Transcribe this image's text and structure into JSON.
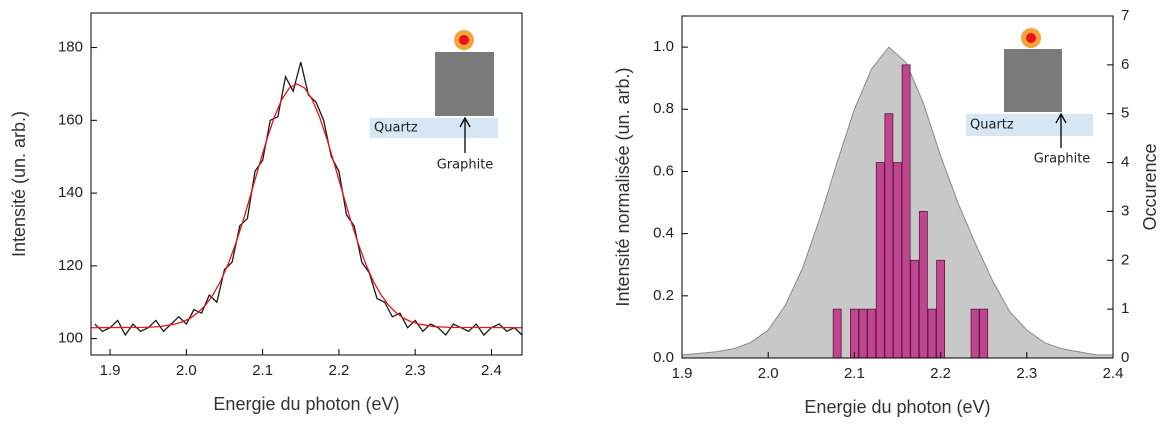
{
  "chart_data": [
    {
      "type": "line",
      "x_label": "Energie du photon (eV)",
      "y_label": "Intensité (un. arb.)",
      "xlim": [
        1.875,
        2.44
      ],
      "xticks": [
        1.9,
        {
          "value": 2,
          "label": "2.0"
        },
        2.1,
        2.2,
        2.3,
        2.4
      ],
      "ylim": [
        95.5,
        189.5
      ],
      "yticks": [
        100,
        120,
        140,
        160,
        180
      ],
      "annotations": [
        "Quartz",
        "Graphite"
      ],
      "series": [
        {
          "type": "line",
          "color": "#1a1a1a",
          "x": [
            1.88,
            1.89,
            1.9,
            1.91,
            1.92,
            1.93,
            1.94,
            1.95,
            1.96,
            1.97,
            1.98,
            1.99,
            2.0,
            2.01,
            2.02,
            2.03,
            2.04,
            2.05,
            2.06,
            2.07,
            2.08,
            2.09,
            2.1,
            2.11,
            2.12,
            2.13,
            2.14,
            2.15,
            2.16,
            2.17,
            2.18,
            2.19,
            2.2,
            2.21,
            2.22,
            2.23,
            2.24,
            2.25,
            2.26,
            2.27,
            2.28,
            2.29,
            2.3,
            2.31,
            2.32,
            2.33,
            2.34,
            2.35,
            2.36,
            2.37,
            2.38,
            2.39,
            2.4,
            2.41,
            2.42,
            2.43,
            2.44
          ],
          "values": [
            104,
            102,
            103,
            105,
            101,
            104,
            102,
            103,
            105,
            102,
            104,
            106,
            104,
            108,
            107,
            112,
            110,
            119,
            121,
            131,
            133,
            146,
            149,
            160,
            161,
            172,
            168,
            176,
            167,
            165,
            160,
            150,
            146,
            134,
            131,
            121,
            118,
            111,
            110,
            106,
            107,
            103,
            105,
            102,
            104,
            103,
            101,
            104,
            103,
            102,
            104,
            101,
            103,
            104,
            102,
            103,
            101
          ]
        },
        {
          "type": "line",
          "color": "#e8141c",
          "x": [
            1.875,
            1.945,
            1.965,
            1.985,
            1.995,
            2.005,
            2.015,
            2.025,
            2.035,
            2.045,
            2.055,
            2.065,
            2.075,
            2.085,
            2.095,
            2.105,
            2.115,
            2.125,
            2.135,
            2.145,
            2.155,
            2.165,
            2.175,
            2.185,
            2.195,
            2.205,
            2.215,
            2.225,
            2.235,
            2.245,
            2.255,
            2.265,
            2.275,
            2.285,
            2.295,
            2.305,
            2.325,
            2.345,
            2.44
          ],
          "values": [
            103,
            103.1,
            103.3,
            104,
            104.6,
            105.6,
            107.1,
            109.2,
            112.1,
            115.8,
            120.6,
            126.3,
            132.8,
            140,
            147.3,
            154.4,
            160.7,
            165.7,
            168.9,
            170,
            168.9,
            165.7,
            160.7,
            154.4,
            147.3,
            140,
            132.8,
            126.3,
            120.6,
            115.8,
            112.1,
            109.2,
            107.1,
            105.6,
            104.6,
            104,
            103.3,
            103.1,
            103
          ]
        }
      ]
    },
    {
      "type": "bar",
      "x_label": "Energie du photon (eV)",
      "y_label": "Intensité normalisée (un. arb.)",
      "y2_label": "Occurence",
      "xlim": [
        1.9,
        2.4
      ],
      "xticks": [
        1.9,
        {
          "value": 2,
          "label": "2.0"
        },
        2.1,
        2.2,
        2.3,
        2.4
      ],
      "ylim": [
        0,
        1.1
      ],
      "yticks": [
        {
          "value": 0,
          "label": "0.0"
        },
        0.2,
        0.4,
        0.6,
        0.8,
        {
          "value": 1,
          "label": "1.0"
        }
      ],
      "y2lim": [
        0,
        7
      ],
      "y2ticks": [
        0,
        1,
        2,
        3,
        4,
        5,
        6,
        7
      ],
      "annotations": [
        "Quartz",
        "Graphite"
      ],
      "series": [
        {
          "type": "area",
          "color": "#c8c8c8",
          "x": [
            1.9,
            1.92,
            1.94,
            1.96,
            1.98,
            2.0,
            2.02,
            2.04,
            2.06,
            2.08,
            2.1,
            2.12,
            2.14,
            2.16,
            2.18,
            2.2,
            2.22,
            2.24,
            2.26,
            2.28,
            2.3,
            2.32,
            2.34,
            2.36,
            2.38,
            2.4
          ],
          "values": [
            0.01,
            0.015,
            0.02,
            0.03,
            0.05,
            0.09,
            0.17,
            0.29,
            0.45,
            0.63,
            0.8,
            0.93,
            1,
            0.95,
            0.82,
            0.65,
            0.5,
            0.37,
            0.25,
            0.15,
            0.09,
            0.05,
            0.03,
            0.02,
            0.01,
            0.01
          ]
        },
        {
          "type": "bar",
          "axis": "y2",
          "color": "#c0458f",
          "x": [
            2.08,
            2.1,
            2.11,
            2.12,
            2.13,
            2.14,
            2.15,
            2.16,
            2.17,
            2.18,
            2.19,
            2.2,
            2.24,
            2.25
          ],
          "values": [
            1,
            1,
            1,
            1,
            4,
            5,
            4,
            6,
            2,
            3,
            1,
            2,
            1,
            1
          ]
        }
      ]
    }
  ]
}
